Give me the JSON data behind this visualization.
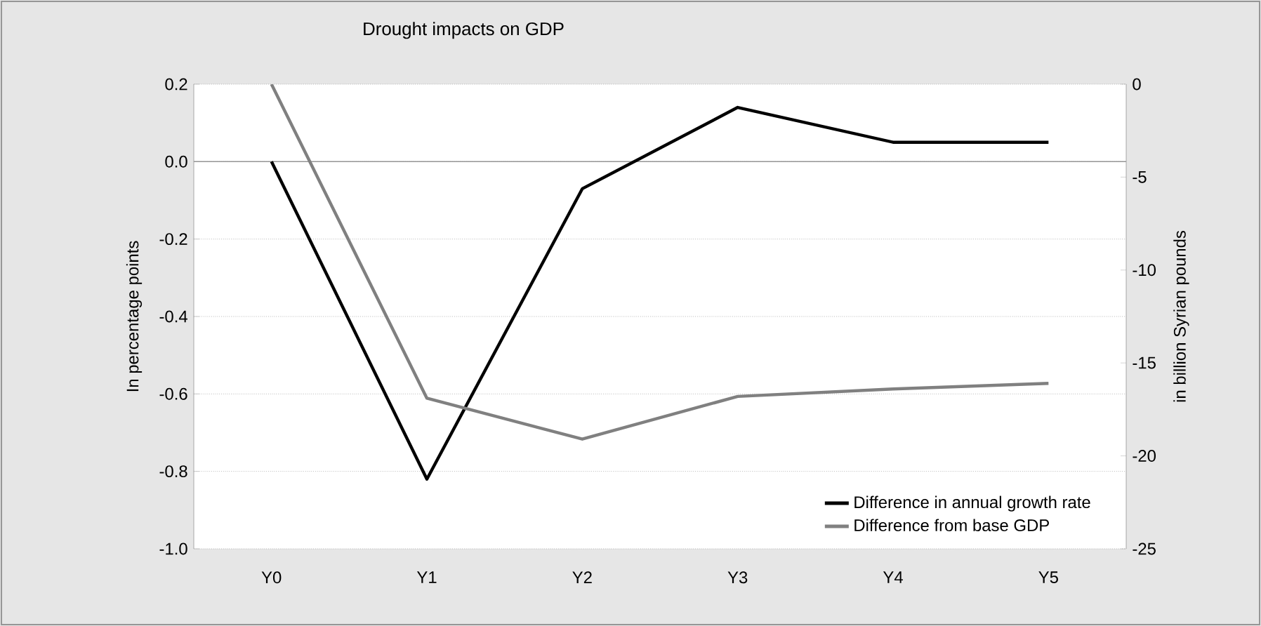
{
  "chart_data": {
    "type": "line",
    "title": "Drought impacts on GDP",
    "ylabel": "In percentage points",
    "y2label": "in billion Syrian pounds",
    "categories": [
      "Y0",
      "Y1",
      "Y2",
      "Y3",
      "Y4",
      "Y5"
    ],
    "series": [
      {
        "name": "Difference in annual growth rate",
        "color": "#000000",
        "values": [
          0,
          -0.82,
          -0.07,
          0.14,
          0.05,
          0.05
        ]
      },
      {
        "name": "Difference from base GDP",
        "color": "#808080",
        "axis": "y2",
        "values": [
          0,
          -16.9,
          -19.1,
          -16.8,
          -16.4,
          -16.1
        ]
      }
    ],
    "ylim": [
      -1.0,
      0.2
    ],
    "yticks": [
      0.2,
      {
        "value": 0,
        "label": "0.0"
      },
      -0.2,
      -0.4,
      -0.6,
      -0.8,
      {
        "value": -1.0,
        "label": "-1.0"
      }
    ],
    "y2lim": [
      -25,
      0
    ],
    "y2ticks": [
      0,
      -5,
      -10,
      -15,
      -20,
      -25
    ],
    "grid": "y",
    "legend": "bottom right",
    "marker": "none",
    "line_style": "solid"
  }
}
